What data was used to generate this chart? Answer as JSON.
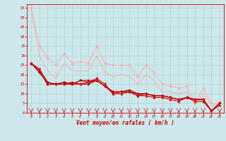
{
  "background_color": "#cce8ec",
  "grid_color": "#aacccc",
  "xlabel": "Vent moyen/en rafales ( km/h )",
  "xlabel_color": "#cc0000",
  "tick_color": "#cc0000",
  "axis_color": "#cc0000",
  "xlim": [
    -0.5,
    23.5
  ],
  "ylim": [
    0,
    57
  ],
  "yticks": [
    0,
    5,
    10,
    15,
    20,
    25,
    30,
    35,
    40,
    45,
    50,
    55
  ],
  "xticks": [
    0,
    1,
    2,
    3,
    4,
    5,
    6,
    7,
    8,
    9,
    10,
    11,
    12,
    13,
    14,
    15,
    16,
    17,
    18,
    19,
    20,
    21,
    22,
    23
  ],
  "series": [
    {
      "x": [
        0,
        1,
        2,
        3,
        4,
        5,
        6,
        7,
        8,
        9,
        10,
        11,
        12,
        13,
        14,
        15,
        16,
        17,
        18,
        19,
        20,
        21,
        22,
        23
      ],
      "y": [
        55,
        35,
        29,
        25,
        31,
        26,
        27,
        26,
        35,
        26,
        25,
        25,
        25,
        19,
        25,
        21,
        15,
        14,
        13,
        14,
        5,
        13,
        5,
        5
      ],
      "color": "#ffaaaa",
      "linewidth": 0.7,
      "marker": "D",
      "markersize": 1.8,
      "zorder": 2
    },
    {
      "x": [
        0,
        1,
        2,
        3,
        4,
        5,
        6,
        7,
        8,
        9,
        10,
        11,
        12,
        13,
        14,
        15,
        16,
        17,
        18,
        19,
        20,
        21,
        22,
        23
      ],
      "y": [
        55,
        30,
        22,
        18,
        26,
        22,
        22,
        22,
        30,
        21,
        19,
        20,
        19,
        15,
        20,
        17,
        11,
        11,
        10,
        11,
        4,
        10,
        4,
        4
      ],
      "color": "#ffaaaa",
      "linewidth": 0.7,
      "marker": null,
      "markersize": 0,
      "zorder": 2
    },
    {
      "x": [
        0,
        1,
        2,
        3,
        4,
        5,
        6,
        7,
        8,
        9,
        10,
        11,
        12,
        13,
        14,
        15,
        16,
        17,
        18,
        19,
        20,
        21,
        22,
        23
      ],
      "y": [
        26,
        23,
        16,
        15,
        16,
        15,
        17,
        16,
        18,
        15,
        10,
        11,
        11,
        10,
        10,
        9,
        9,
        8,
        7,
        8,
        7,
        7,
        1,
        5
      ],
      "color": "#cc0000",
      "linewidth": 0.8,
      "marker": "v",
      "markersize": 2.2,
      "zorder": 3
    },
    {
      "x": [
        0,
        1,
        2,
        3,
        4,
        5,
        6,
        7,
        8,
        9,
        10,
        11,
        12,
        13,
        14,
        15,
        16,
        17,
        18,
        19,
        20,
        21,
        22,
        23
      ],
      "y": [
        26,
        22,
        15,
        15,
        15,
        15,
        15,
        15,
        17,
        14,
        10,
        10,
        11,
        9,
        9,
        8,
        8,
        7,
        6,
        8,
        6,
        6,
        1,
        4
      ],
      "color": "#cc0000",
      "linewidth": 0.8,
      "marker": "^",
      "markersize": 2.2,
      "zorder": 3
    },
    {
      "x": [
        0,
        1,
        2,
        3,
        4,
        5,
        6,
        7,
        8,
        9,
        10,
        11,
        12,
        13,
        14,
        15,
        16,
        17,
        18,
        19,
        20,
        21,
        22,
        23
      ],
      "y": [
        26,
        22,
        15,
        15,
        15,
        16,
        15,
        16,
        17,
        14,
        11,
        11,
        12,
        10,
        10,
        9,
        9,
        8,
        7,
        8,
        7,
        7,
        1,
        5
      ],
      "color": "#cc0000",
      "linewidth": 1.0,
      "marker": "D",
      "markersize": 1.8,
      "zorder": 4
    },
    {
      "x": [
        0,
        1,
        2,
        3,
        4,
        5,
        6,
        7,
        8,
        9,
        10,
        11,
        12,
        13,
        14,
        15,
        16,
        17,
        18,
        19,
        20,
        21,
        22,
        23
      ],
      "y": [
        26,
        21,
        16,
        15,
        16,
        15,
        17,
        17,
        17,
        14,
        11,
        11,
        11,
        9,
        10,
        9,
        9,
        8,
        7,
        8,
        7,
        7,
        1,
        5
      ],
      "color": "#880000",
      "linewidth": 0.7,
      "marker": "s",
      "markersize": 1.5,
      "zorder": 3
    }
  ]
}
